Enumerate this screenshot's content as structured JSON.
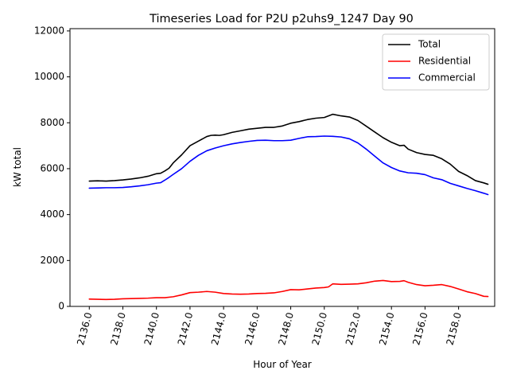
{
  "chart_data": {
    "type": "line",
    "title": "Timeseries Load for P2U p2uhs9_1247  Day 90",
    "xlabel": "Hour of Year",
    "ylabel": "kW total",
    "xlim": [
      2134.85,
      2160.15
    ],
    "ylim": [
      0,
      12100
    ],
    "x_ticks": [
      2136.0,
      2138.0,
      2140.0,
      2142.0,
      2144.0,
      2146.0,
      2148.0,
      2150.0,
      2152.0,
      2154.0,
      2156.0,
      2158.0
    ],
    "x_tick_labels": [
      "2136.0",
      "2138.0",
      "2140.0",
      "2142.0",
      "2144.0",
      "2146.0",
      "2148.0",
      "2150.0",
      "2152.0",
      "2154.0",
      "2156.0",
      "2158.0"
    ],
    "y_ticks": [
      0,
      2000,
      4000,
      6000,
      8000,
      10000,
      12000
    ],
    "y_tick_labels": [
      "0",
      "2000",
      "4000",
      "6000",
      "8000",
      "10000",
      "12000"
    ],
    "legend_position": "upper right",
    "grid": false,
    "series": [
      {
        "name": "Total",
        "color": "#000000",
        "x": [
          2136.0,
          2136.5,
          2137.0,
          2137.5,
          2138.0,
          2138.5,
          2139.0,
          2139.5,
          2140.0,
          2140.25,
          2140.5,
          2140.75,
          2141.0,
          2141.5,
          2142.0,
          2142.5,
          2143.0,
          2143.25,
          2143.5,
          2143.75,
          2144.0,
          2144.5,
          2145.0,
          2145.5,
          2146.0,
          2146.5,
          2147.0,
          2147.5,
          2148.0,
          2148.5,
          2149.0,
          2149.5,
          2150.0,
          2150.25,
          2150.5,
          2151.0,
          2151.5,
          2152.0,
          2152.5,
          2153.0,
          2153.5,
          2154.0,
          2154.5,
          2154.75,
          2155.0,
          2155.5,
          2156.0,
          2156.5,
          2157.0,
          2157.5,
          2158.0,
          2158.5,
          2159.0,
          2159.5,
          2159.75
        ],
        "y": [
          5460,
          5470,
          5460,
          5480,
          5510,
          5550,
          5600,
          5670,
          5780,
          5800,
          5900,
          6020,
          6250,
          6600,
          7000,
          7200,
          7400,
          7450,
          7460,
          7450,
          7480,
          7580,
          7650,
          7720,
          7760,
          7800,
          7800,
          7860,
          7980,
          8050,
          8140,
          8200,
          8230,
          8300,
          8370,
          8300,
          8250,
          8100,
          7850,
          7600,
          7350,
          7150,
          7000,
          7020,
          6850,
          6700,
          6620,
          6580,
          6430,
          6200,
          5880,
          5700,
          5480,
          5380,
          5320
        ]
      },
      {
        "name": "Residential",
        "color": "#ff0000",
        "x": [
          2136.0,
          2136.5,
          2137.0,
          2137.5,
          2138.0,
          2138.5,
          2139.0,
          2139.5,
          2140.0,
          2140.5,
          2141.0,
          2141.5,
          2142.0,
          2142.5,
          2143.0,
          2143.5,
          2144.0,
          2144.5,
          2145.0,
          2145.5,
          2146.0,
          2146.5,
          2147.0,
          2147.5,
          2148.0,
          2148.5,
          2149.0,
          2149.5,
          2150.0,
          2150.25,
          2150.5,
          2151.0,
          2151.5,
          2152.0,
          2152.5,
          2153.0,
          2153.5,
          2154.0,
          2154.5,
          2154.75,
          2155.0,
          2155.5,
          2156.0,
          2156.5,
          2157.0,
          2157.5,
          2158.0,
          2158.5,
          2159.0,
          2159.5,
          2159.75
        ],
        "y": [
          320,
          310,
          300,
          310,
          330,
          340,
          350,
          360,
          380,
          380,
          420,
          500,
          600,
          620,
          650,
          620,
          560,
          540,
          530,
          540,
          560,
          570,
          590,
          650,
          730,
          720,
          760,
          800,
          820,
          850,
          980,
          960,
          970,
          980,
          1030,
          1100,
          1130,
          1080,
          1090,
          1120,
          1050,
          950,
          900,
          920,
          950,
          870,
          760,
          640,
          560,
          440,
          430
        ]
      },
      {
        "name": "Commercial",
        "color": "#0000ff",
        "x": [
          2136.0,
          2136.5,
          2137.0,
          2137.5,
          2138.0,
          2138.5,
          2139.0,
          2139.5,
          2140.0,
          2140.25,
          2140.5,
          2140.75,
          2141.0,
          2141.5,
          2142.0,
          2142.5,
          2143.0,
          2143.5,
          2144.0,
          2144.5,
          2145.0,
          2145.5,
          2146.0,
          2146.5,
          2147.0,
          2147.5,
          2148.0,
          2148.5,
          2149.0,
          2149.5,
          2150.0,
          2150.5,
          2151.0,
          2151.5,
          2152.0,
          2152.5,
          2153.0,
          2153.5,
          2154.0,
          2154.5,
          2155.0,
          2155.5,
          2156.0,
          2156.5,
          2157.0,
          2157.5,
          2158.0,
          2158.5,
          2159.0,
          2159.5,
          2159.75
        ],
        "y": [
          5150,
          5160,
          5170,
          5170,
          5180,
          5210,
          5250,
          5300,
          5370,
          5390,
          5500,
          5620,
          5750,
          6000,
          6320,
          6580,
          6780,
          6900,
          7000,
          7080,
          7140,
          7190,
          7230,
          7240,
          7220,
          7220,
          7240,
          7320,
          7390,
          7400,
          7420,
          7410,
          7380,
          7300,
          7120,
          6850,
          6550,
          6250,
          6050,
          5900,
          5820,
          5800,
          5740,
          5600,
          5520,
          5360,
          5250,
          5140,
          5040,
          4930,
          4870
        ]
      }
    ]
  }
}
